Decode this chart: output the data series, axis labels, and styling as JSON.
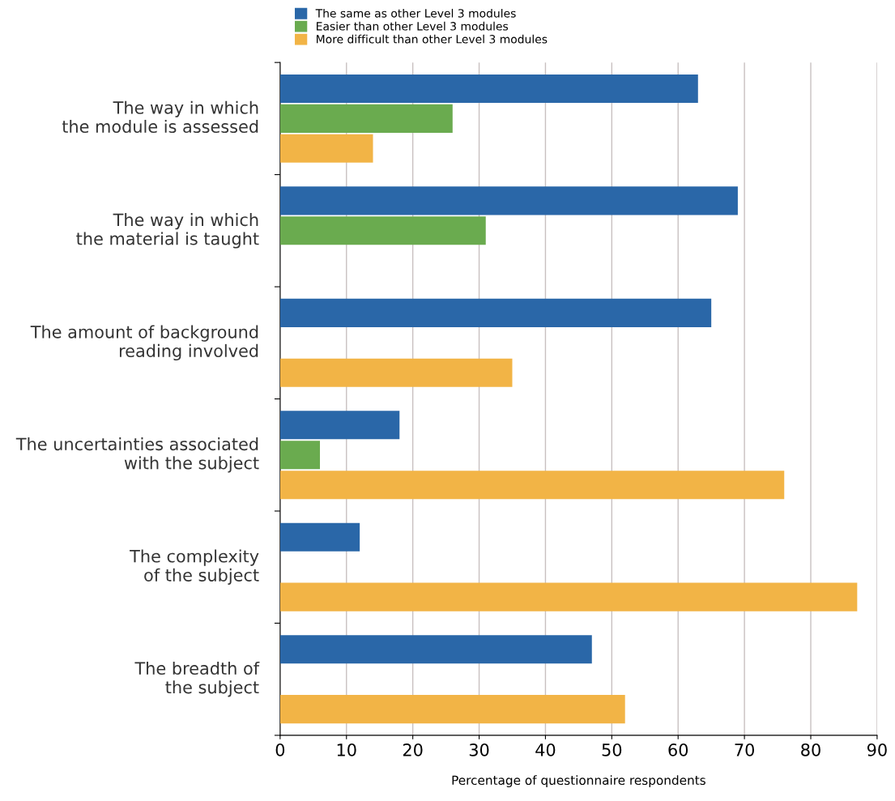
{
  "chart_data": {
    "type": "bar",
    "orientation": "horizontal",
    "xlabel": "Percentage of questionnaire respondents",
    "categories": [
      "The way in which\nthe module is assessed",
      "The way in which\nthe material is taught",
      "The amount of background\nreading involved",
      "The uncertainties associated\nwith the subject",
      "The complexity\nof the subject",
      "The breadth of\nthe subject"
    ],
    "series": [
      {
        "name": "The same as other Level 3 modules",
        "color": "#2a67a8",
        "values": [
          63,
          69,
          65,
          18,
          12,
          47
        ]
      },
      {
        "name": "Easier than other Level 3 modules",
        "color": "#6aab4f",
        "values": [
          26,
          31,
          null,
          6,
          null,
          null
        ]
      },
      {
        "name": "More difficult than other Level 3 modules",
        "color": "#f2b446",
        "values": [
          14,
          null,
          35,
          76,
          87,
          52
        ]
      }
    ],
    "xlim": [
      0,
      90
    ],
    "xticks": [
      0,
      10,
      20,
      30,
      40,
      50,
      60,
      70,
      80,
      90
    ],
    "grid": "x",
    "legend": "top"
  }
}
